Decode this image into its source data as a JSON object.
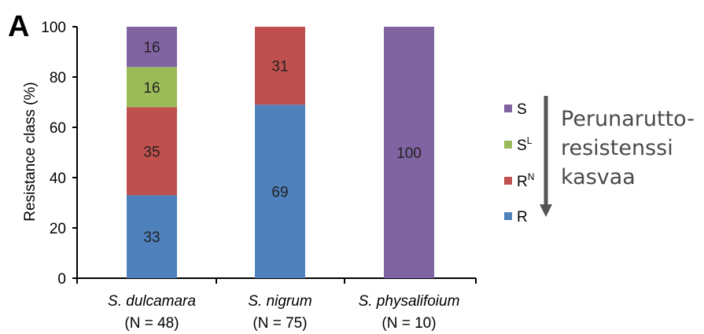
{
  "panel_label": "A",
  "annotation": [
    "Perunarutto-",
    "resistenssi",
    "kasvaa"
  ],
  "chart_data": {
    "type": "bar",
    "stacked": true,
    "ylabel": "Resistance class (%)",
    "ylim": [
      0,
      100
    ],
    "yticks": [
      "0",
      "20",
      "40",
      "60",
      "80",
      "100"
    ],
    "grid": false,
    "legend_position": "right",
    "categories": [
      {
        "name": "S. dulcamara",
        "n": "(N = 48)"
      },
      {
        "name": "S. nigrum",
        "n": "(N = 75)"
      },
      {
        "name": "S. physalifoium",
        "n": "(N = 10)"
      }
    ],
    "series": [
      {
        "name": "R",
        "sup": "",
        "color": "#4f81bd",
        "values": [
          33,
          69,
          0
        ]
      },
      {
        "name": "R",
        "sup": "N",
        "color": "#c0504d",
        "values": [
          35,
          31,
          0
        ]
      },
      {
        "name": "S",
        "sup": "L",
        "color": "#9bbb59",
        "values": [
          16,
          0,
          0
        ]
      },
      {
        "name": "S",
        "sup": "",
        "color": "#8064a2",
        "values": [
          16,
          0,
          100
        ]
      }
    ],
    "legend_order": [
      3,
      2,
      1,
      0
    ]
  }
}
